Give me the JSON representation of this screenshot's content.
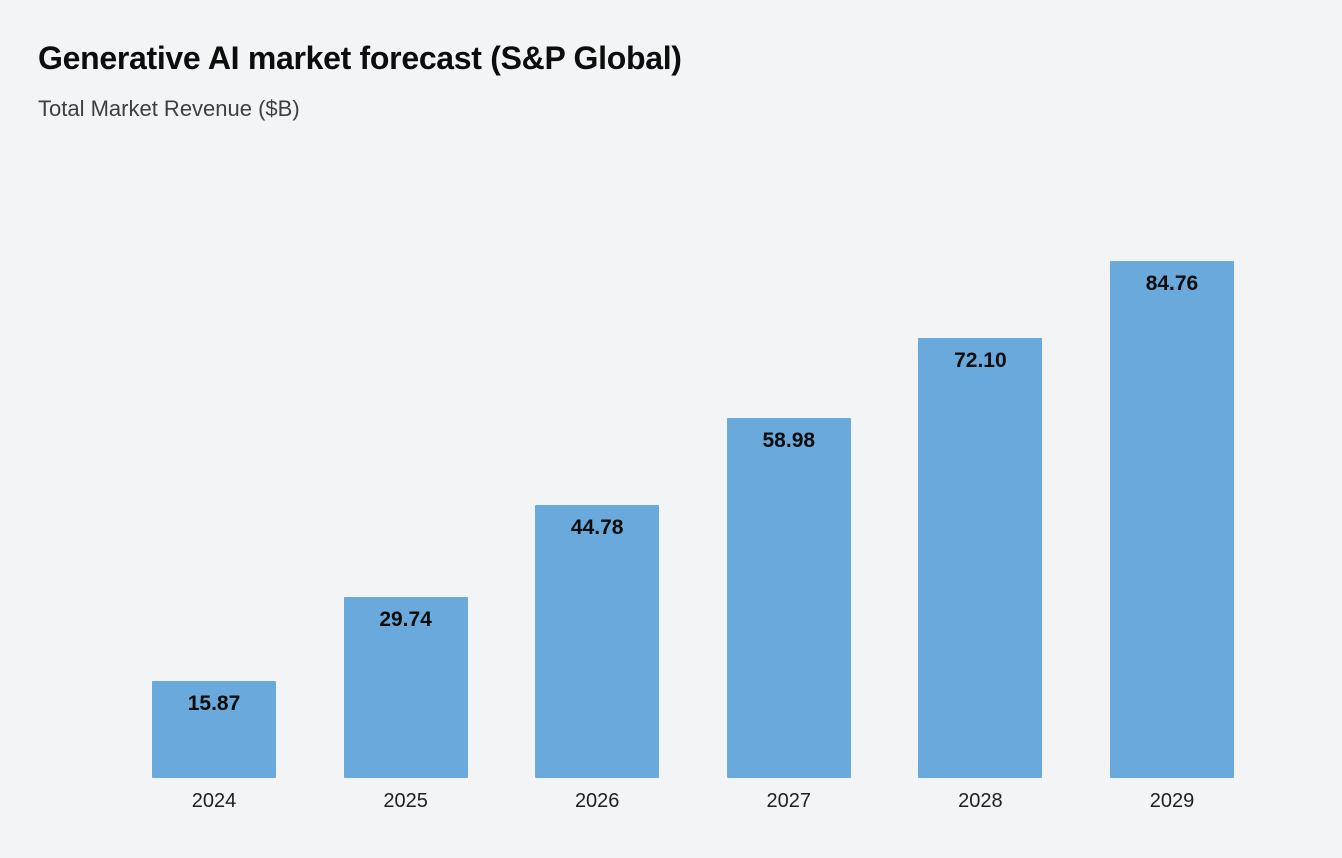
{
  "header": {
    "title": "Generative AI market forecast (S&P Global)",
    "subtitle": "Total Market Revenue ($B)"
  },
  "chart_data": {
    "type": "bar",
    "title": "Generative AI market forecast (S&P Global)",
    "subtitle": "Total Market Revenue ($B)",
    "categories": [
      "2024",
      "2025",
      "2026",
      "2027",
      "2028",
      "2029"
    ],
    "values": [
      15.87,
      29.74,
      44.78,
      58.98,
      72.1,
      84.76
    ],
    "value_labels": [
      "15.87",
      "29.74",
      "44.78",
      "58.98",
      "72.10",
      "84.76"
    ],
    "xlabel": "",
    "ylabel": "Total Market Revenue ($B)",
    "ylim": [
      0,
      90
    ],
    "grid": false,
    "legend": "none",
    "bar_color": "#6aa9dc",
    "background_color": "#f2f4f6",
    "label_color": "#0d0d0d"
  }
}
